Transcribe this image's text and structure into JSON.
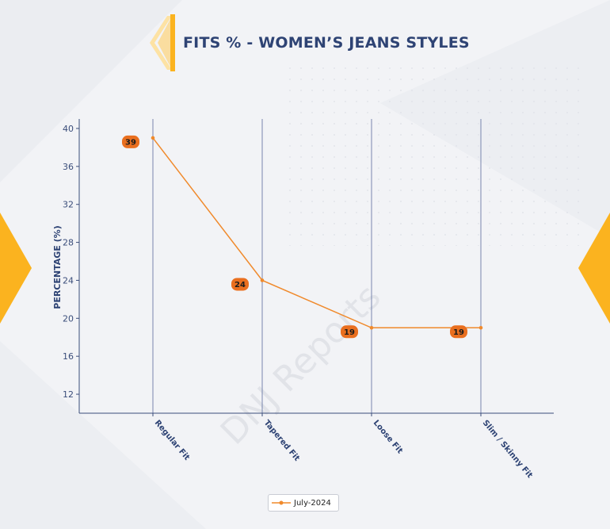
{
  "page": {
    "title": "FITS % - WOMEN’S JEANS STYLES",
    "watermark": "DNJ Reports",
    "colors": {
      "background": "#f2f3f6",
      "title": "#2e4374",
      "accent": "#fbb31f",
      "series": "#f08a2c",
      "axis": "#3a4d7a",
      "gridline": "#6b7aa8",
      "label_badge": "#e96f1f"
    }
  },
  "chart_data": {
    "type": "line",
    "title": "FITS % - WOMEN’S JEANS STYLES",
    "xlabel": "",
    "ylabel": "PERCENTAGE (%)",
    "categories": [
      "Regular Fit",
      "Tapered Fit",
      "Loose Fit",
      "Slim / Skinny Fit"
    ],
    "series": [
      {
        "name": "July-2024",
        "values": [
          39,
          24,
          19,
          19
        ],
        "color": "#f08a2c"
      }
    ],
    "data_labels": [
      "39",
      "24",
      "19",
      "19"
    ],
    "ylim": [
      10,
      41
    ],
    "yticks": [
      12,
      16,
      20,
      24,
      28,
      32,
      36,
      40
    ],
    "grid": "vertical",
    "legend_position": "bottom-center"
  }
}
